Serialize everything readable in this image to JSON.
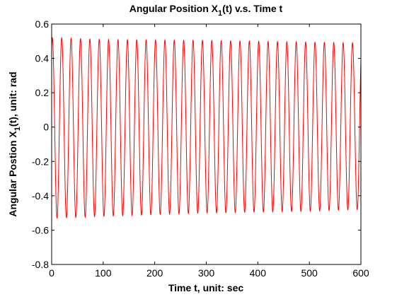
{
  "chart_data": {
    "type": "line",
    "title": "Angular Position X1(t)  v.s.  Time t",
    "title_parts": {
      "pre": "Angular Position X",
      "sub": "1",
      "post": "(t)  v.s.  Time t"
    },
    "xlabel": "Time t, unit: sec",
    "ylabel": "Angular Postion X1(t), unit: rad",
    "ylabel_parts": {
      "pre": "Angular Postion X",
      "sub": "1",
      "post": "(t), unit: rad"
    },
    "xlim": [
      0,
      600
    ],
    "ylim": [
      -0.8,
      0.6
    ],
    "xticks": [
      0,
      100,
      200,
      300,
      400,
      500,
      600
    ],
    "xtick_labels": [
      "0",
      "100",
      "200",
      "300",
      "400",
      "500",
      "600"
    ],
    "yticks": [
      -0.8,
      -0.6,
      -0.4,
      -0.2,
      0,
      0.2,
      0.4,
      0.6
    ],
    "ytick_labels": [
      "-0.8",
      "-0.6",
      "-0.4",
      "-0.2",
      "0",
      "0.2",
      "0.4",
      "0.6"
    ],
    "grid": false,
    "series": [
      {
        "color": "#ff0000",
        "description": "damped sinusoidal oscillation",
        "period": 18.2,
        "peak_max": [
          [
            17,
            0.52
          ],
          [
            100,
            0.51
          ],
          [
            300,
            0.505
          ],
          [
            500,
            0.495
          ],
          [
            588,
            0.49
          ]
        ],
        "trough_min": [
          [
            10,
            -0.53
          ],
          [
            100,
            -0.52
          ],
          [
            300,
            -0.5
          ],
          [
            500,
            -0.49
          ],
          [
            590,
            -0.48
          ]
        ],
        "start": [
          0,
          0.45
        ],
        "end": [
          600,
          -0.1
        ]
      }
    ]
  }
}
